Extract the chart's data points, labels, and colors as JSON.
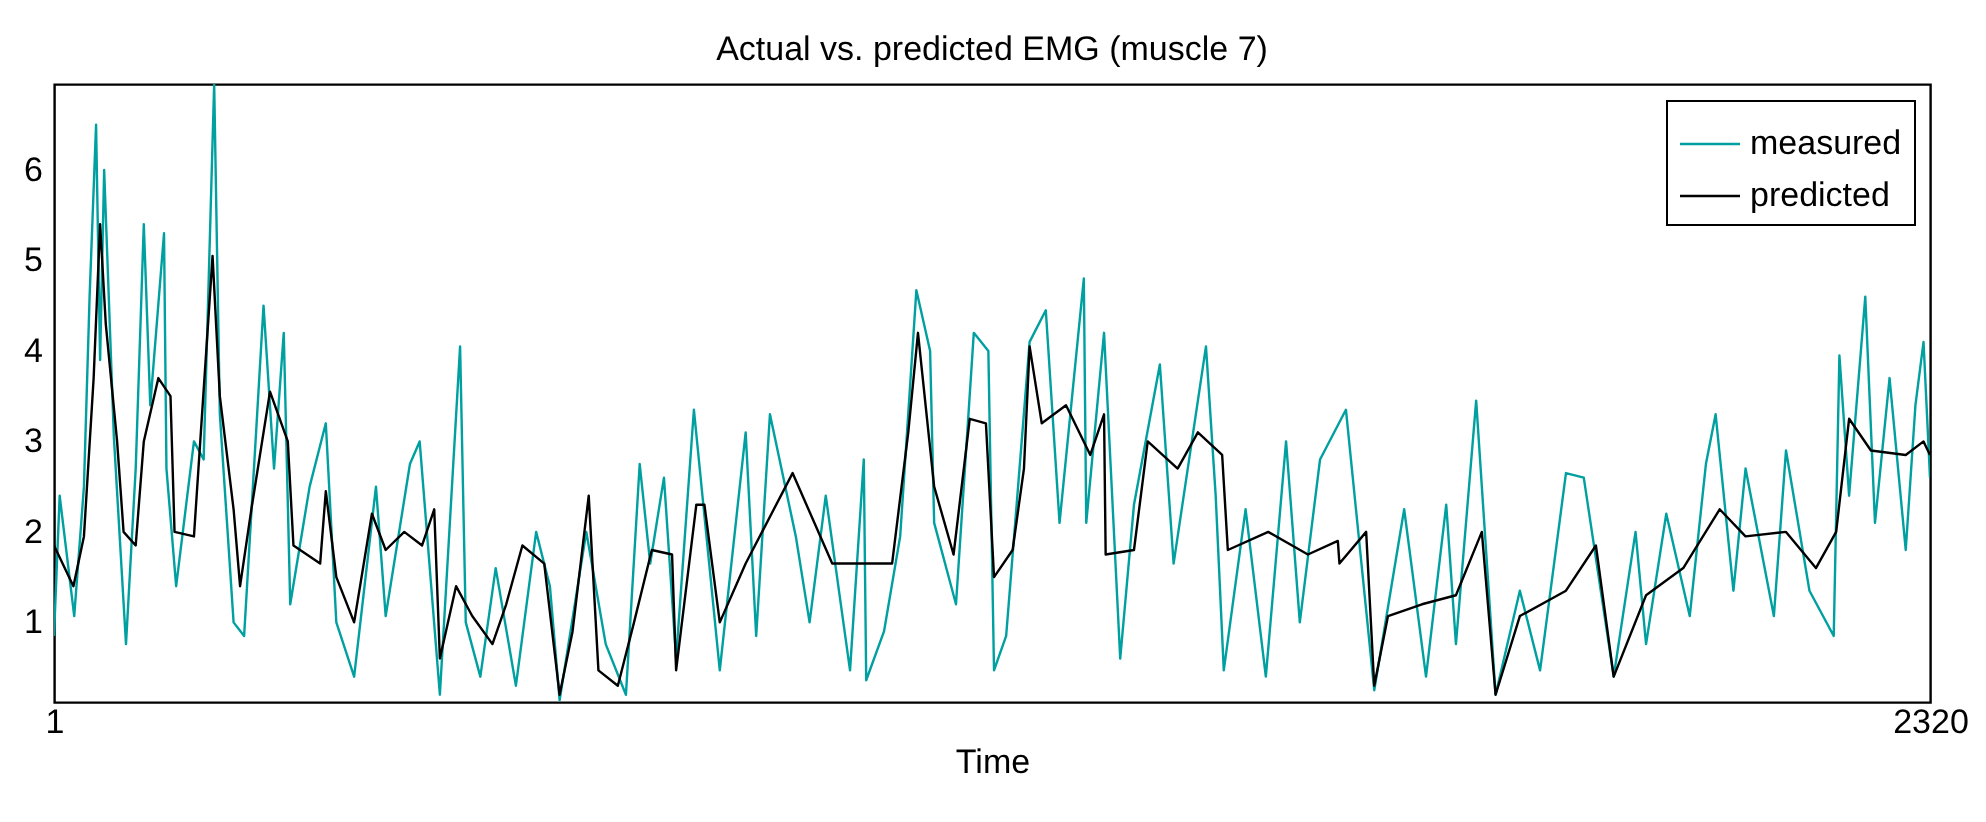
{
  "chart_data": {
    "type": "line",
    "title": "Actual vs. predicted EMG (muscle 7)",
    "xlabel": "Time",
    "xlim": [
      1,
      2320
    ],
    "xticks": [
      1,
      2320
    ],
    "ylim": [
      0.12,
      6.95
    ],
    "yticks": [
      1,
      2,
      3,
      4,
      5,
      6
    ],
    "grid": false,
    "legend": "top right",
    "line_style": "solid",
    "marker": "none",
    "series": [
      {
        "name": "measured",
        "color": "#00a0a0",
        "x": [
          1,
          8,
          26,
          38,
          45,
          53,
          58,
          63,
          75,
          90,
          102,
          112,
          120,
          137,
          140,
          152,
          174,
          186,
          199,
          206,
          223,
          236,
          260,
          273,
          285,
          293,
          317,
          337,
          350,
          372,
          399,
          411,
          441,
          453,
          478,
          503,
          510,
          528,
          547,
          572,
          597,
          614,
          626,
          659,
          683,
          708,
          725,
          738,
          755,
          770,
          792,
          824,
          856,
          869,
          886,
          918,
          935,
          955,
          985,
          1002,
          1005,
          1027,
          1047,
          1067,
          1084,
          1089,
          1116,
          1138,
          1156,
          1163,
          1178,
          1207,
          1227,
          1244,
          1274,
          1277,
          1299,
          1319,
          1336,
          1368,
          1385,
          1425,
          1437,
          1447,
          1474,
          1499,
          1524,
          1541,
          1566,
          1598,
          1633,
          1670,
          1697,
          1722,
          1734,
          1759,
          1783,
          1813,
          1838,
          1870,
          1892,
          1929,
          1956,
          1969,
          1994,
          2023,
          2043,
          2055,
          2077,
          2092,
          2127,
          2142,
          2171,
          2201,
          2208,
          2220,
          2240,
          2252,
          2270,
          2290,
          2302,
          2312,
          2320
        ],
        "values": [
          0.85,
          2.4,
          1.07,
          2.5,
          4.6,
          6.5,
          3.9,
          6.0,
          3.05,
          0.76,
          2.7,
          5.4,
          3.4,
          5.3,
          2.7,
          1.4,
          3.0,
          2.8,
          6.95,
          3.3,
          1.0,
          0.85,
          4.5,
          2.7,
          4.2,
          1.2,
          2.5,
          3.2,
          1.0,
          0.4,
          2.5,
          1.07,
          2.75,
          3.0,
          0.2,
          4.05,
          1.0,
          0.4,
          1.6,
          0.3,
          2.0,
          1.4,
          0.14,
          2.0,
          0.76,
          0.2,
          2.75,
          1.65,
          2.6,
          0.6,
          3.35,
          0.47,
          3.1,
          0.85,
          3.3,
          1.95,
          1.0,
          2.4,
          0.47,
          2.8,
          0.36,
          0.9,
          1.95,
          4.67,
          4.0,
          2.1,
          1.2,
          4.2,
          4.0,
          0.47,
          0.85,
          4.1,
          4.45,
          2.1,
          4.8,
          2.1,
          4.2,
          0.6,
          2.3,
          3.85,
          1.65,
          4.05,
          2.4,
          0.47,
          2.25,
          0.4,
          3.0,
          1.0,
          2.8,
          3.35,
          0.25,
          2.25,
          0.4,
          2.3,
          0.76,
          3.45,
          0.2,
          1.35,
          0.47,
          2.65,
          2.6,
          0.4,
          2.0,
          0.76,
          2.2,
          1.07,
          2.75,
          3.3,
          1.35,
          2.7,
          1.07,
          2.9,
          1.35,
          0.85,
          3.95,
          2.4,
          4.6,
          2.1,
          3.7,
          1.8,
          3.4,
          4.1,
          2.6
        ]
      },
      {
        "name": "predicted",
        "color": "#000000",
        "x": [
          1,
          25,
          38,
          50,
          58,
          65,
          79,
          87,
          102,
          112,
          130,
          145,
          150,
          174,
          197,
          206,
          223,
          231,
          245,
          268,
          290,
          297,
          330,
          337,
          350,
          372,
          394,
          411,
          434,
          456,
          471,
          478,
          498,
          518,
          543,
          560,
          580,
          607,
          626,
          642,
          662,
          674,
          698,
          718,
          740,
          765,
          770,
          795,
          805,
          824,
          856,
          914,
          963,
          1037,
          1057,
          1069,
          1089,
          1113,
          1133,
          1153,
          1163,
          1186,
          1200,
          1207,
          1222,
          1252,
          1282,
          1299,
          1301,
          1336,
          1353,
          1390,
          1415,
          1445,
          1452,
          1502,
          1551,
          1588,
          1590,
          1623,
          1633,
          1650,
          1692,
          1734,
          1766,
          1783,
          1813,
          1870,
          1907,
          1929,
          1969,
          2015,
          2060,
          2092,
          2142,
          2179,
          2204,
          2220,
          2247,
          2290,
          2312,
          2320
        ],
        "values": [
          1.85,
          1.4,
          1.95,
          3.7,
          5.4,
          4.3,
          3.0,
          2.0,
          1.85,
          3.0,
          3.7,
          3.5,
          2.0,
          1.95,
          5.05,
          3.5,
          2.25,
          1.4,
          2.25,
          3.55,
          3.0,
          1.85,
          1.65,
          2.45,
          1.5,
          1.0,
          2.2,
          1.8,
          2.0,
          1.85,
          2.25,
          0.6,
          1.4,
          1.07,
          0.76,
          1.2,
          1.85,
          1.65,
          0.2,
          0.9,
          2.4,
          0.47,
          0.3,
          1.0,
          1.8,
          1.75,
          0.47,
          2.3,
          2.3,
          1.0,
          1.65,
          2.65,
          1.65,
          1.65,
          3.1,
          4.2,
          2.5,
          1.75,
          3.25,
          3.2,
          1.5,
          1.8,
          2.7,
          4.05,
          3.2,
          3.4,
          2.85,
          3.3,
          1.75,
          1.8,
          3.0,
          2.7,
          3.1,
          2.85,
          1.8,
          2.0,
          1.75,
          1.9,
          1.65,
          2.0,
          0.3,
          1.07,
          1.2,
          1.3,
          2.0,
          0.2,
          1.07,
          1.35,
          1.85,
          0.4,
          1.3,
          1.6,
          2.25,
          1.95,
          2.0,
          1.6,
          2.0,
          3.25,
          2.9,
          2.85,
          3.0,
          2.85
        ]
      }
    ]
  }
}
